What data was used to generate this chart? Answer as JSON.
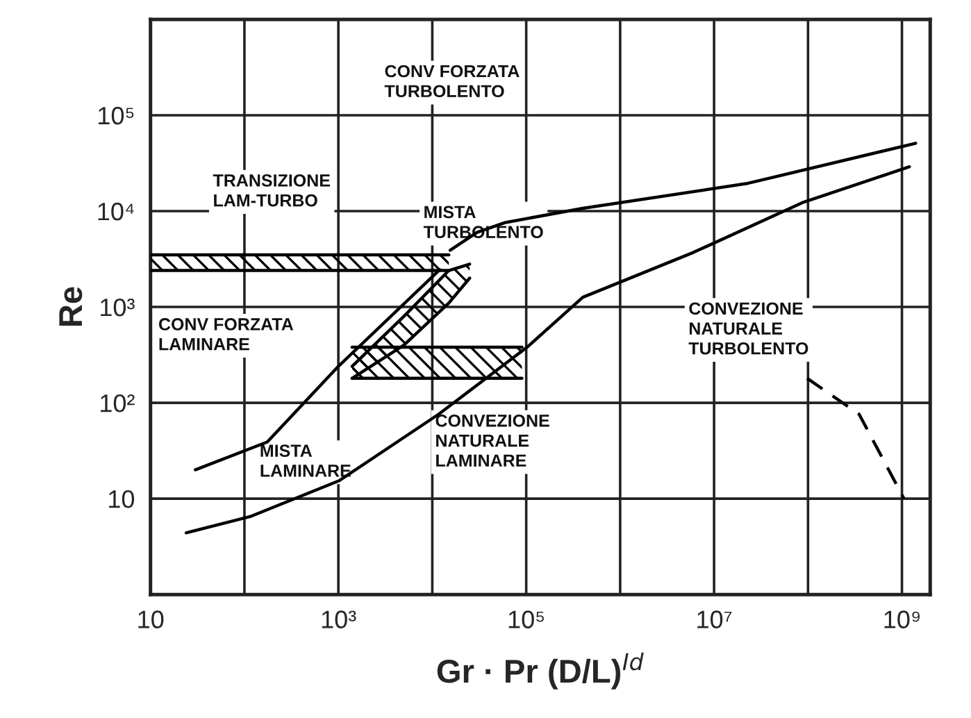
{
  "chart_data": {
    "type": "line",
    "xlabel": "Gr · Pr (D/L)$^{Id}$",
    "ylabel": "Re",
    "log": "xy",
    "grid": true,
    "marker": "none",
    "xlim": [
      10,
      2000000000
    ],
    "ylim": [
      1,
      1000000
    ],
    "xticks": [
      10,
      {
        "value": 100,
        "label": null
      },
      {
        "value": 1000,
        "label": "10³"
      },
      {
        "value": 10000,
        "label": null
      },
      {
        "value": 100000,
        "label": "10⁵"
      },
      {
        "value": 1000000,
        "label": null
      },
      {
        "value": 10000000,
        "label": "10⁷"
      },
      {
        "value": 100000000,
        "label": null
      },
      {
        "value": 1000000000,
        "label": "10⁹"
      }
    ],
    "yticks": [
      10,
      {
        "value": 100,
        "label": "10²"
      },
      {
        "value": 1000,
        "label": "10³"
      },
      {
        "value": 10000,
        "label": "10⁴"
      },
      {
        "value": 100000,
        "label": "10⁵"
      }
    ],
    "series": [
      {
        "color": "#000000",
        "line_style": "solid",
        "x": [
          15500,
          30000,
          60000,
          400000,
          23000000,
          1400000000
        ],
        "values": [
          3900,
          6000,
          7600,
          10700,
          19500,
          51000
        ]
      },
      {
        "color": "#000000",
        "line_style": "solid",
        "x": [
          24,
          115,
          1020,
          11700,
          102000,
          400000,
          6000000,
          90000000,
          1200000000
        ],
        "values": [
          4.4,
          6.5,
          15.4,
          76,
          380,
          1260,
          3700,
          12400,
          29000
        ]
      },
      {
        "color": "#000000",
        "line_style": "solid",
        "x": [
          30,
          175,
          1000,
          12000
        ],
        "values": [
          20,
          39,
          240,
          2450
        ]
      },
      {
        "color": "#000000",
        "line_style": "dashed",
        "x": [
          98000000,
          350000000,
          1050000000
        ],
        "values": [
          180,
          76,
          10
        ]
      },
      {
        "color": "#000000",
        "line_style": "solid",
        "x": [
          10,
          15000
        ],
        "values": [
          3500,
          3500
        ]
      },
      {
        "color": "#000000",
        "line_style": "solid",
        "x": [
          10,
          15000
        ],
        "values": [
          2400,
          2400
        ]
      },
      {
        "color": "#000000",
        "line_style": "solid",
        "x": [
          1400,
          90000
        ],
        "values": [
          380,
          380
        ]
      },
      {
        "color": "#000000",
        "line_style": "solid",
        "x": [
          1400,
          90000
        ],
        "values": [
          180,
          180
        ]
      },
      {
        "color": "#000000",
        "line_style": "solid",
        "x": [
          1400,
          5000,
          15000,
          25000
        ],
        "values": [
          240,
          800,
          2400,
          2800
        ]
      },
      {
        "color": "#000000",
        "line_style": "solid",
        "x": [
          1400,
          5000,
          15000,
          25000
        ],
        "values": [
          180,
          400,
          1100,
          2000
        ]
      }
    ],
    "annotations": [
      "CONV FORZATA\nTURBOLENTO",
      "TRANSIZIONE\nLAM-TURBO",
      "MISTA\nTURBOLENTO",
      "CONVEZIONE\nNATURALE\nTURBOLENTO",
      "CONV FORZATA\nLAMINARE",
      "MISTA\nLAMINARE",
      "CONVEZIONE\nNATURALE\nLAMINARE"
    ]
  }
}
